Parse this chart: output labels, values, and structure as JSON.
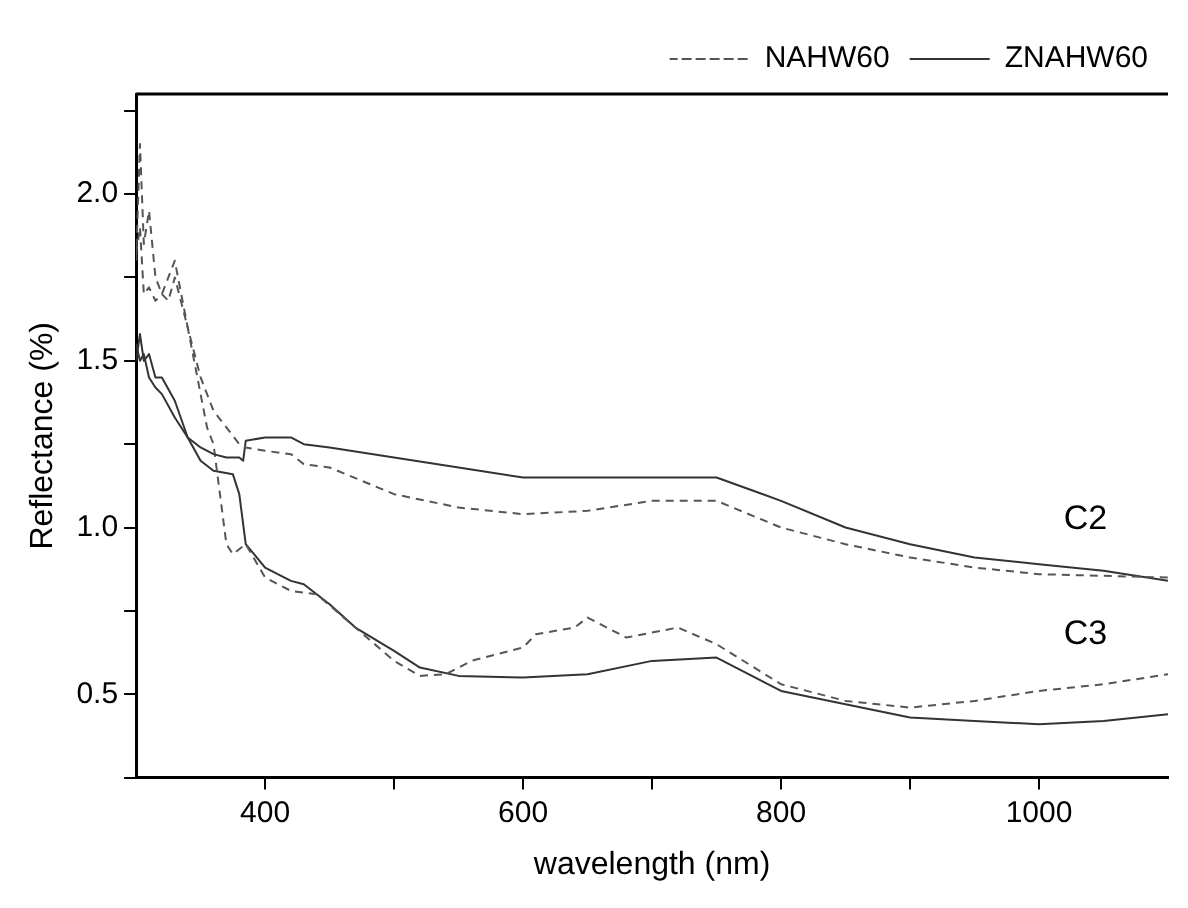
{
  "chart_data": {
    "type": "line",
    "xlabel": "wavelength (nm)",
    "ylabel": "Reflectance (%)",
    "xlim": [
      300,
      1100
    ],
    "ylim": [
      0.25,
      2.3
    ],
    "xticks": [
      400,
      {
        "value": 500,
        "label": null
      },
      600,
      {
        "value": 700,
        "label": null
      },
      800,
      {
        "value": 900,
        "label": null
      },
      1000
    ],
    "yticks": [
      {
        "value": 0.25,
        "label": null
      },
      0.5,
      {
        "value": 0.75,
        "label": null
      },
      {
        "value": 1,
        "label": "1.0"
      },
      {
        "value": 1.25,
        "label": null
      },
      1.5,
      {
        "value": 1.75,
        "label": null
      },
      {
        "value": 2,
        "label": "2.0"
      },
      {
        "value": 2.25,
        "label": null
      }
    ],
    "grid": false,
    "legend": "top right",
    "marker": "none",
    "series": [
      {
        "name": "NAHW60",
        "color": "#555555",
        "line_style": "dashed",
        "x": [
          300,
          303,
          306,
          310,
          315,
          320,
          325,
          330,
          340,
          350,
          360,
          370,
          380,
          385,
          400,
          420,
          430,
          450,
          500,
          550,
          600,
          650,
          700,
          750,
          800,
          850,
          900,
          950,
          1000,
          1050,
          1100
        ],
        "values": [
          1.8,
          2.15,
          1.85,
          1.95,
          1.75,
          1.7,
          1.75,
          1.8,
          1.6,
          1.45,
          1.35,
          1.3,
          1.25,
          1.24,
          1.23,
          1.22,
          1.19,
          1.18,
          1.1,
          1.06,
          1.04,
          1.05,
          1.08,
          1.08,
          1.0,
          0.95,
          0.91,
          0.88,
          0.86,
          0.855,
          0.85
        ]
      },
      {
        "name": "ZNAHW60",
        "color": "#333333",
        "line_style": "solid",
        "x": [
          300,
          303,
          306,
          310,
          315,
          320,
          330,
          340,
          350,
          360,
          370,
          380,
          383,
          385,
          400,
          420,
          430,
          450,
          500,
          550,
          600,
          650,
          700,
          750,
          800,
          850,
          900,
          950,
          1000,
          1050,
          1100
        ],
        "values": [
          1.5,
          1.58,
          1.5,
          1.52,
          1.45,
          1.45,
          1.38,
          1.27,
          1.24,
          1.22,
          1.21,
          1.21,
          1.2,
          1.26,
          1.27,
          1.27,
          1.25,
          1.24,
          1.21,
          1.18,
          1.15,
          1.15,
          1.15,
          1.15,
          1.08,
          1.0,
          0.95,
          0.91,
          0.89,
          0.87,
          0.84
        ]
      },
      {
        "color": "#555555",
        "line_style": "dashed",
        "x": [
          300,
          303,
          306,
          310,
          315,
          320,
          325,
          330,
          340,
          350,
          355,
          360,
          365,
          370,
          375,
          385,
          400,
          420,
          440,
          470,
          500,
          520,
          540,
          560,
          600,
          610,
          640,
          650,
          680,
          720,
          750,
          800,
          850,
          900,
          950,
          1000,
          1050,
          1100
        ],
        "values": [
          1.82,
          1.9,
          1.7,
          1.72,
          1.68,
          1.7,
          1.68,
          1.75,
          1.6,
          1.4,
          1.3,
          1.25,
          1.1,
          0.95,
          0.92,
          0.95,
          0.85,
          0.81,
          0.8,
          0.7,
          0.6,
          0.555,
          0.56,
          0.6,
          0.64,
          0.68,
          0.7,
          0.73,
          0.67,
          0.7,
          0.65,
          0.53,
          0.48,
          0.46,
          0.48,
          0.51,
          0.53,
          0.56
        ]
      },
      {
        "color": "#333333",
        "line_style": "solid",
        "x": [
          300,
          303,
          306,
          310,
          315,
          320,
          330,
          340,
          350,
          360,
          375,
          380,
          385,
          400,
          420,
          430,
          450,
          470,
          500,
          520,
          550,
          600,
          650,
          700,
          750,
          800,
          850,
          900,
          950,
          1000,
          1050,
          1100
        ],
        "values": [
          1.55,
          1.5,
          1.52,
          1.45,
          1.42,
          1.4,
          1.33,
          1.27,
          1.2,
          1.17,
          1.16,
          1.1,
          0.95,
          0.88,
          0.84,
          0.83,
          0.77,
          0.7,
          0.63,
          0.58,
          0.555,
          0.55,
          0.56,
          0.6,
          0.61,
          0.51,
          0.47,
          0.43,
          0.42,
          0.41,
          0.42,
          0.44
        ]
      }
    ],
    "annotations": [
      "C2",
      "C3"
    ]
  }
}
